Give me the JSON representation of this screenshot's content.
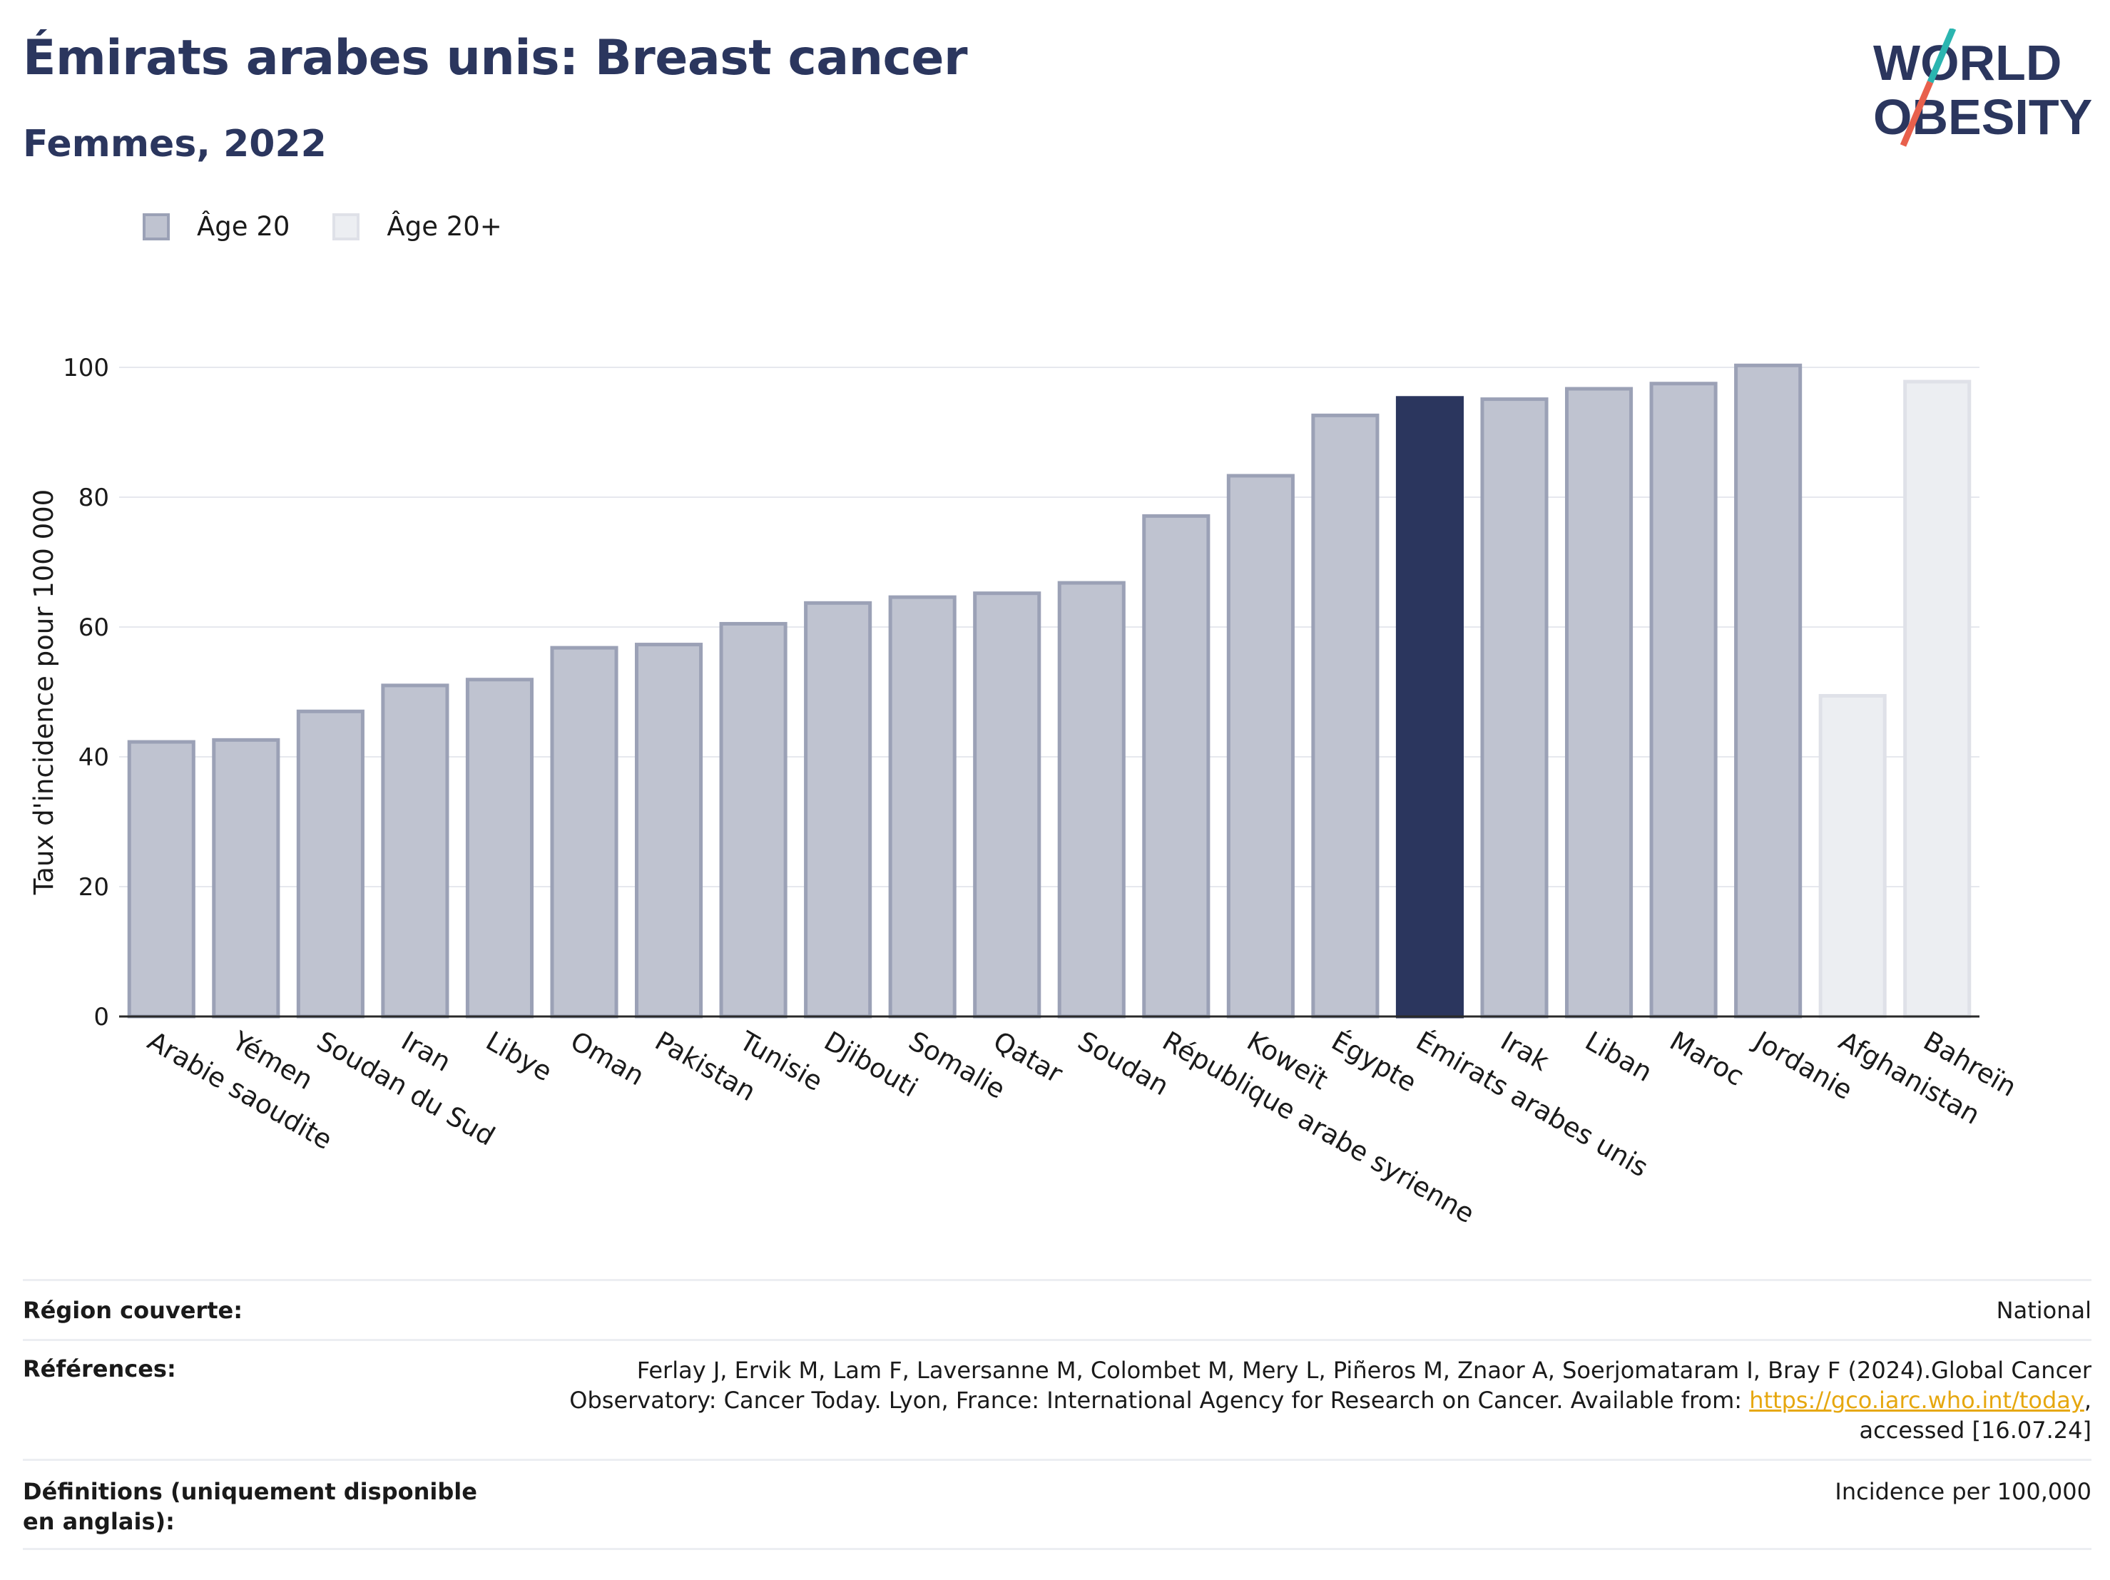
{
  "header": {
    "title": "Émirats arabes unis: Breast cancer",
    "subtitle": "Femmes, 2022"
  },
  "logo": {
    "line1": "WORLD",
    "line2": "OBESITY",
    "colors": {
      "text": "#2b365e",
      "slash_top": "#2bb5b0",
      "slash_bottom": "#e8604c"
    }
  },
  "legend": [
    {
      "label": "Âge 20",
      "fill": "#bfc3d0",
      "stroke": "#9ba1b6"
    },
    {
      "label": "Âge 20+",
      "fill": "#eceef2",
      "stroke": "#dfe1e8"
    }
  ],
  "colors": {
    "highlight": "#2b365e",
    "age20_fill": "#bfc3d0",
    "age20_stroke": "#9ba1b6",
    "age20plus_fill": "#eceef2",
    "age20plus_stroke": "#dfe1e8",
    "grid": "#e6e8ee",
    "axis": "#2a2a2a",
    "link": "#e6a70f"
  },
  "chart_data": {
    "type": "bar",
    "ylabel": "Taux d'incidence pour 100 000",
    "ylim": [
      0,
      100
    ],
    "yticks": [
      0,
      20,
      40,
      60,
      80,
      100
    ],
    "grid": true,
    "legend_position": "top-left",
    "categories": [
      "Arabie saoudite",
      "Yémen",
      "Soudan du Sud",
      "Iran",
      "Libye",
      "Oman",
      "Pakistan",
      "Tunisie",
      "Djibouti",
      "Somalie",
      "Qatar",
      "Soudan",
      "République arabe syrienne",
      "Koweït",
      "Égypte",
      "Émirats arabes unis",
      "Irak",
      "Liban",
      "Maroc",
      "Jordanie",
      "Afghanistan",
      "Bahreïn"
    ],
    "values": [
      42.3,
      42.6,
      47.0,
      51.0,
      51.9,
      56.8,
      57.3,
      60.5,
      63.7,
      64.6,
      65.2,
      66.8,
      77.1,
      83.3,
      92.6,
      95.3,
      95.1,
      96.7,
      97.5,
      100.3,
      49.4,
      97.8
    ],
    "groups": [
      "Âge 20",
      "Âge 20",
      "Âge 20",
      "Âge 20",
      "Âge 20",
      "Âge 20",
      "Âge 20",
      "Âge 20",
      "Âge 20",
      "Âge 20",
      "Âge 20",
      "Âge 20",
      "Âge 20",
      "Âge 20",
      "Âge 20",
      "Âge 20",
      "Âge 20",
      "Âge 20",
      "Âge 20",
      "Âge 20",
      "Âge 20+",
      "Âge 20+"
    ],
    "highlight": "Émirats arabes unis"
  },
  "table": {
    "region_label": "Région couverte:",
    "region_value": "National",
    "ref_label": "Références:",
    "ref_line1": "Ferlay J, Ervik M, Lam F, Laversanne M, Colombet M, Mery L, Piñeros M, Znaor A, Soerjomataram I, Bray F (2024).Global Cancer",
    "ref_line2": "Observatory: Cancer Today. Lyon, France: International Agency for Research on Cancer. Available from: ",
    "ref_link": "https://gco.iarc.who.int/today",
    "ref_line2_end": ",",
    "ref_line3": "accessed [16.07.24]",
    "def_label": "Définitions (uniquement disponible en anglais):",
    "def_value": "Incidence per 100,000"
  }
}
